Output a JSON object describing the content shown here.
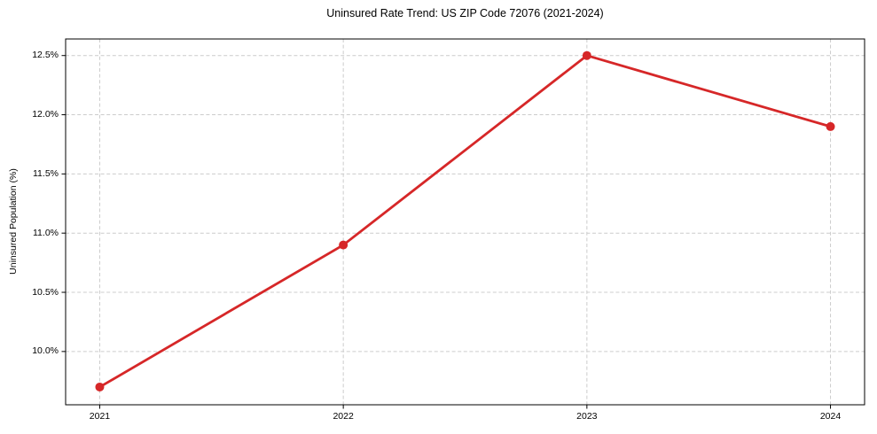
{
  "figure": {
    "background": "#ffffff"
  },
  "chart_data": {
    "type": "line",
    "title": "Uninsured Rate Trend: US ZIP Code 72076 (2021-2024)",
    "xlabel": "",
    "ylabel": "Uninsured Population (%)",
    "x": [
      2021,
      2022,
      2023,
      2024
    ],
    "values": [
      9.7,
      10.9,
      12.5,
      11.9
    ],
    "xticks": {
      "values": [
        2021,
        2022,
        2023,
        2024
      ],
      "labels": [
        "2021",
        "2022",
        "2023",
        "2024"
      ]
    },
    "yticks": {
      "values": [
        10.0,
        10.5,
        11.0,
        11.5,
        12.0,
        12.5
      ],
      "labels": [
        "10.0%",
        "10.5%",
        "11.0%",
        "11.5%",
        "12.0%",
        "12.5%"
      ]
    },
    "xlim": [
      2020.86,
      2024.14
    ],
    "ylim": [
      9.55,
      12.64
    ],
    "grid": true,
    "grid_style": "dashed",
    "legend": false,
    "line_color": "#d62728",
    "marker": "circle",
    "marker_color": "#d62728",
    "grid_color": "#cccccc",
    "spine_color": "#000000",
    "tick_color": "#000000"
  }
}
